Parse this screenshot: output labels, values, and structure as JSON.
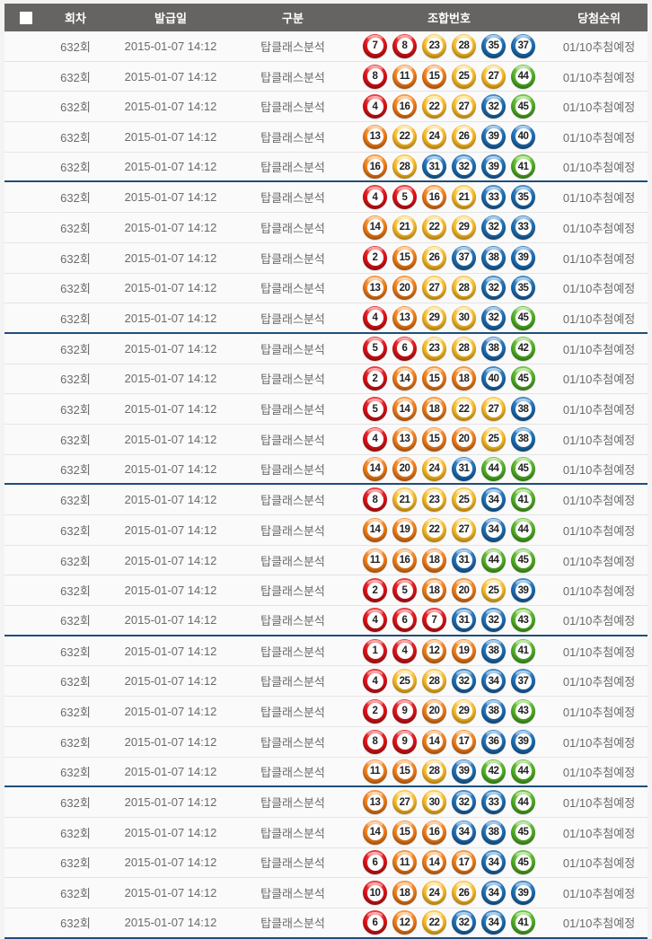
{
  "header": {
    "columns": {
      "round": "회차",
      "issue_date": "발급일",
      "category": "구분",
      "combination": "조합번호",
      "rank": "당첨순위"
    }
  },
  "row_fields": {
    "round": "632회",
    "issue_date": "2015-01-07 14:12",
    "category": "탑클래스분석",
    "rank": "01/10추첨예정"
  },
  "ball_colors": {
    "red": {
      "light": "#ff7a7a",
      "main": "#e3151b",
      "dark": "#a90d10"
    },
    "orange": {
      "light": "#ffc27d",
      "main": "#f5821f",
      "dark": "#c75e08"
    },
    "yellow": {
      "light": "#ffe9a8",
      "main": "#fcbf2e",
      "dark": "#e09c07"
    },
    "blue": {
      "light": "#7db6e3",
      "main": "#2173bb",
      "dark": "#114e85"
    },
    "green": {
      "light": "#a5e275",
      "main": "#57b52c",
      "dark": "#358c0f"
    }
  },
  "ball_color_ranges": [
    {
      "max": 10,
      "color": "red"
    },
    {
      "max": 20,
      "color": "orange"
    },
    {
      "max": 30,
      "color": "yellow"
    },
    {
      "max": 40,
      "color": "blue"
    },
    {
      "max": 45,
      "color": "green"
    }
  ],
  "group_separator_every": 5,
  "group_separator_color": "#1f4e79",
  "combinations": [
    [
      7,
      8,
      23,
      28,
      35,
      37
    ],
    [
      8,
      11,
      15,
      25,
      27,
      44
    ],
    [
      4,
      16,
      22,
      27,
      32,
      45
    ],
    [
      13,
      22,
      24,
      26,
      39,
      40
    ],
    [
      16,
      28,
      31,
      32,
      39,
      41
    ],
    [
      4,
      5,
      16,
      21,
      33,
      35
    ],
    [
      14,
      21,
      22,
      29,
      32,
      33
    ],
    [
      2,
      15,
      26,
      37,
      38,
      39
    ],
    [
      13,
      20,
      27,
      28,
      32,
      35
    ],
    [
      4,
      13,
      29,
      30,
      32,
      45
    ],
    [
      5,
      6,
      23,
      28,
      38,
      42
    ],
    [
      2,
      14,
      15,
      18,
      40,
      45
    ],
    [
      5,
      14,
      18,
      22,
      27,
      38
    ],
    [
      4,
      13,
      15,
      20,
      25,
      38
    ],
    [
      14,
      20,
      24,
      31,
      44,
      45
    ],
    [
      8,
      21,
      23,
      25,
      34,
      41
    ],
    [
      14,
      19,
      22,
      27,
      34,
      44
    ],
    [
      11,
      16,
      18,
      31,
      44,
      45
    ],
    [
      2,
      5,
      18,
      20,
      25,
      39
    ],
    [
      4,
      6,
      7,
      31,
      32,
      43
    ],
    [
      1,
      4,
      12,
      19,
      38,
      41
    ],
    [
      4,
      25,
      28,
      32,
      34,
      37
    ],
    [
      2,
      9,
      20,
      29,
      38,
      43
    ],
    [
      8,
      9,
      14,
      17,
      36,
      39
    ],
    [
      11,
      15,
      28,
      39,
      42,
      44
    ],
    [
      13,
      27,
      30,
      32,
      33,
      44
    ],
    [
      14,
      15,
      16,
      34,
      38,
      45
    ],
    [
      6,
      11,
      14,
      17,
      34,
      45
    ],
    [
      10,
      18,
      24,
      26,
      34,
      39
    ],
    [
      6,
      12,
      22,
      32,
      34,
      41
    ]
  ]
}
